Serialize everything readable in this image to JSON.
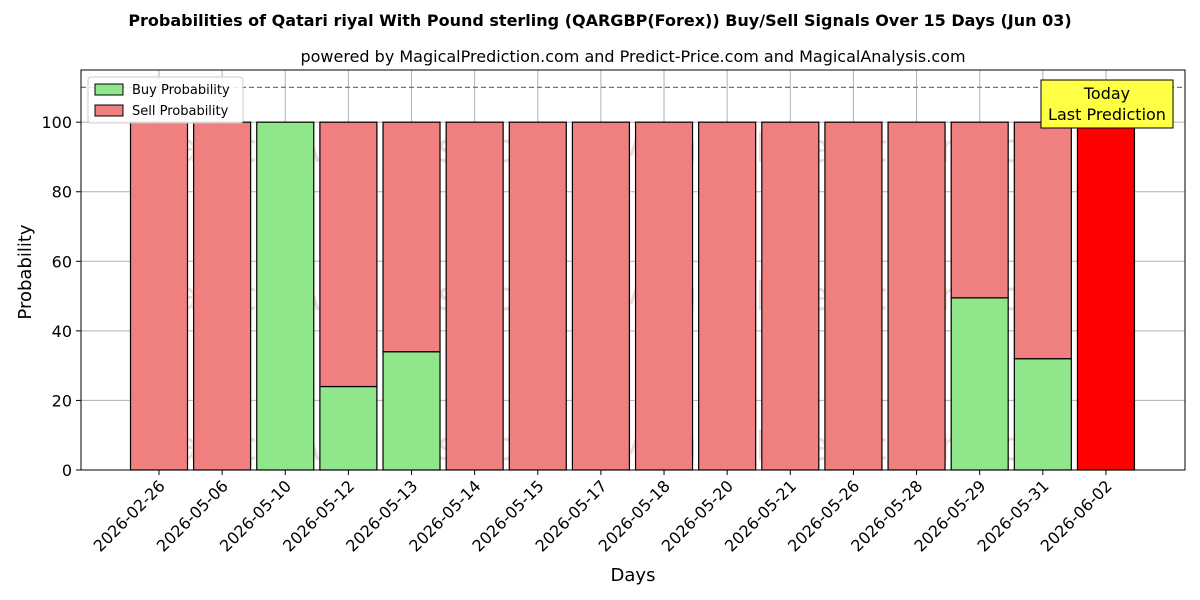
{
  "chart_data": {
    "type": "bar",
    "title": "Probabilities of Qatari riyal With Pound sterling (QARGBP(Forex)) Buy/Sell Signals Over 15 Days (Jun 03)",
    "subtitle": "powered by MagicalPrediction.com and Predict-Price.com and MagicalAnalysis.com",
    "xlabel": "Days",
    "ylabel": "Probability",
    "ylim": [
      0,
      115
    ],
    "yticks": [
      0,
      20,
      40,
      60,
      80,
      100
    ],
    "grid": true,
    "stacked": true,
    "reference_line": 110,
    "categories": [
      "2026-02-26",
      "2026-05-06",
      "2026-05-10",
      "2026-05-12",
      "2026-05-13",
      "2026-05-14",
      "2026-05-15",
      "2026-05-17",
      "2026-05-18",
      "2026-05-20",
      "2026-05-21",
      "2026-05-26",
      "2026-05-28",
      "2026-05-29",
      "2026-05-31",
      "2026-06-02"
    ],
    "series": [
      {
        "name": "Buy Probability",
        "color": "#90e68a",
        "values": [
          0,
          0,
          100,
          24,
          34,
          0,
          0,
          0,
          0,
          0,
          0,
          0,
          0,
          49.5,
          32,
          0
        ]
      },
      {
        "name": "Sell Probability",
        "color": "#f08080",
        "values": [
          100,
          100,
          0,
          76,
          66,
          100,
          100,
          100,
          100,
          100,
          100,
          100,
          100,
          50.5,
          68,
          100
        ]
      }
    ],
    "highlight": {
      "index": 15,
      "color": "#ff0000"
    },
    "legend": {
      "position": "top-left"
    },
    "annotation": {
      "lines": [
        "Today",
        "Last Prediction"
      ],
      "position": "top-right",
      "background": "#ffff44"
    },
    "watermarks": [
      "MagicalAnalysis.com",
      "MagicalPrediction.com"
    ]
  }
}
